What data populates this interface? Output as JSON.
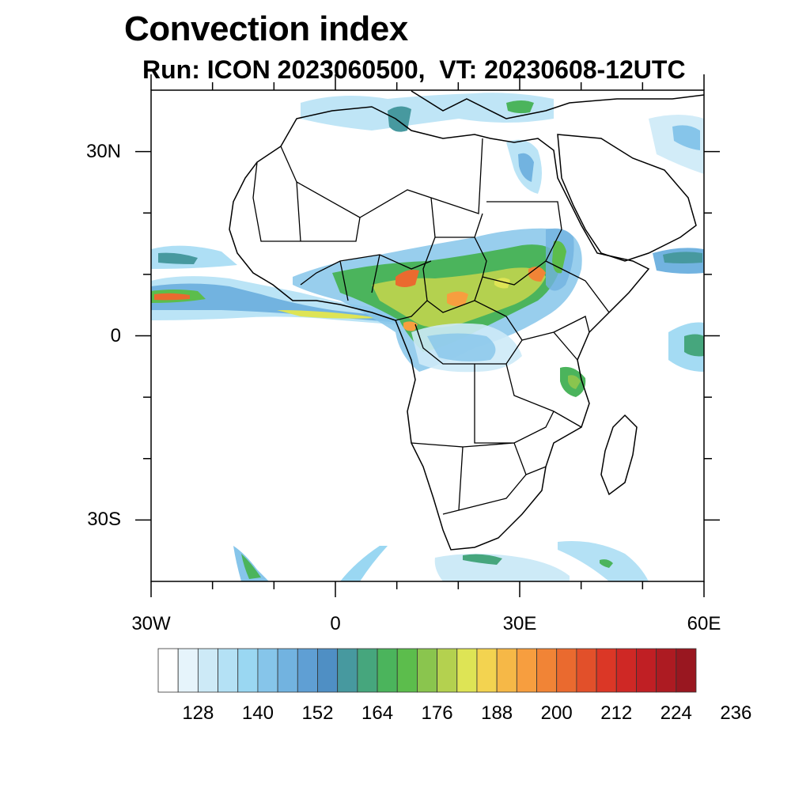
{
  "title": "Convection index",
  "subtitle": "Run: ICON 2023060500,  VT: 20230608-12UTC",
  "map": {
    "lon_range": [
      -30,
      60
    ],
    "lat_range": [
      -40,
      40
    ],
    "lat_labels": [
      {
        "lat": 30,
        "text": "30N"
      },
      {
        "lat": 0,
        "text": "0"
      },
      {
        "lat": -30,
        "text": "30S"
      }
    ],
    "lon_labels": [
      {
        "lon": -30,
        "text": "30W"
      },
      {
        "lon": 0,
        "text": "0"
      },
      {
        "lon": 30,
        "text": "30E"
      },
      {
        "lon": 60,
        "text": "60E"
      }
    ]
  },
  "colorbar": {
    "colors": [
      "#ffffff",
      "#e6f4fb",
      "#cdeaf7",
      "#b4e1f5",
      "#9ad7f2",
      "#86c5ea",
      "#72b3e0",
      "#5f9fd4",
      "#4f8fc4",
      "#47999f",
      "#46a67d",
      "#4bb45c",
      "#5cbd4c",
      "#8ac54e",
      "#b4d14f",
      "#dee455",
      "#f3d350",
      "#f6b847",
      "#f79e3f",
      "#f18436",
      "#ea6a2f",
      "#e2502a",
      "#db3726",
      "#cf2825",
      "#c01f24",
      "#ad1b22",
      "#991720"
    ],
    "tick_labels": [
      "128",
      "140",
      "152",
      "164",
      "176",
      "188",
      "200",
      "212",
      "224",
      "236"
    ]
  }
}
